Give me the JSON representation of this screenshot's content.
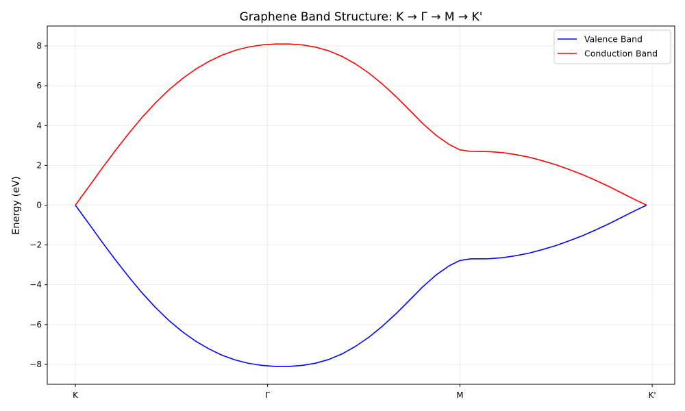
{
  "chart_data": {
    "type": "line",
    "title": "Graphene Band Structure: K → Γ → M → K'",
    "xlabel": "",
    "ylabel": "Energy (eV)",
    "x_ticks": [
      "K",
      "Γ",
      "M",
      "K'"
    ],
    "y_ticks": [
      -8,
      -6,
      -4,
      -2,
      0,
      2,
      4,
      6,
      8
    ],
    "ylim": [
      -9,
      9
    ],
    "grid": true,
    "legend_position": "top-right",
    "series": [
      {
        "name": "Valence Band",
        "color": "#0000ff",
        "points": [
          [
            0.0,
            0.0
          ],
          [
            0.05,
            -0.92
          ],
          [
            0.1,
            -1.85
          ],
          [
            0.15,
            -2.75
          ],
          [
            0.2,
            -3.6
          ],
          [
            0.25,
            -4.41
          ],
          [
            0.3,
            -5.14
          ],
          [
            0.35,
            -5.79
          ],
          [
            0.4,
            -6.35
          ],
          [
            0.45,
            -6.83
          ],
          [
            0.5,
            -7.22
          ],
          [
            0.55,
            -7.54
          ],
          [
            0.6,
            -7.78
          ],
          [
            0.65,
            -7.95
          ],
          [
            0.7,
            -8.05
          ],
          [
            0.75,
            -8.1
          ],
          [
            0.8,
            -8.1
          ],
          [
            0.85,
            -8.05
          ],
          [
            0.9,
            -7.94
          ],
          [
            0.95,
            -7.75
          ],
          [
            1.0,
            -7.47
          ],
          [
            1.05,
            -7.09
          ],
          [
            1.1,
            -6.63
          ],
          [
            1.15,
            -6.08
          ],
          [
            1.2,
            -5.47
          ],
          [
            1.25,
            -4.8
          ],
          [
            1.3,
            -4.12
          ],
          [
            1.35,
            -3.52
          ],
          [
            1.4,
            -3.05
          ],
          [
            1.44,
            -2.78
          ],
          [
            1.48,
            -2.7
          ],
          [
            1.55,
            -2.69
          ],
          [
            1.6,
            -2.64
          ],
          [
            1.65,
            -2.54
          ],
          [
            1.7,
            -2.41
          ],
          [
            1.75,
            -2.23
          ],
          [
            1.8,
            -2.03
          ],
          [
            1.85,
            -1.79
          ],
          [
            1.9,
            -1.53
          ],
          [
            1.95,
            -1.24
          ],
          [
            2.0,
            -0.93
          ],
          [
            2.05,
            -0.59
          ],
          [
            2.1,
            -0.25
          ],
          [
            2.14,
            0.0
          ]
        ]
      },
      {
        "name": "Conduction Band",
        "color": "#ff0000",
        "points": [
          [
            0.0,
            0.0
          ],
          [
            0.05,
            0.92
          ],
          [
            0.1,
            1.85
          ],
          [
            0.15,
            2.75
          ],
          [
            0.2,
            3.6
          ],
          [
            0.25,
            4.41
          ],
          [
            0.3,
            5.14
          ],
          [
            0.35,
            5.79
          ],
          [
            0.4,
            6.35
          ],
          [
            0.45,
            6.83
          ],
          [
            0.5,
            7.22
          ],
          [
            0.55,
            7.54
          ],
          [
            0.6,
            7.78
          ],
          [
            0.65,
            7.95
          ],
          [
            0.7,
            8.05
          ],
          [
            0.75,
            8.1
          ],
          [
            0.8,
            8.1
          ],
          [
            0.85,
            8.05
          ],
          [
            0.9,
            7.94
          ],
          [
            0.95,
            7.75
          ],
          [
            1.0,
            7.47
          ],
          [
            1.05,
            7.09
          ],
          [
            1.1,
            6.63
          ],
          [
            1.15,
            6.08
          ],
          [
            1.2,
            5.47
          ],
          [
            1.25,
            4.8
          ],
          [
            1.3,
            4.12
          ],
          [
            1.35,
            3.52
          ],
          [
            1.4,
            3.05
          ],
          [
            1.44,
            2.78
          ],
          [
            1.48,
            2.7
          ],
          [
            1.55,
            2.69
          ],
          [
            1.6,
            2.64
          ],
          [
            1.65,
            2.54
          ],
          [
            1.7,
            2.41
          ],
          [
            1.75,
            2.23
          ],
          [
            1.8,
            2.03
          ],
          [
            1.85,
            1.79
          ],
          [
            1.9,
            1.53
          ],
          [
            1.95,
            1.24
          ],
          [
            2.0,
            0.93
          ],
          [
            2.05,
            0.59
          ],
          [
            2.1,
            0.25
          ],
          [
            2.14,
            0.0
          ]
        ]
      }
    ]
  }
}
